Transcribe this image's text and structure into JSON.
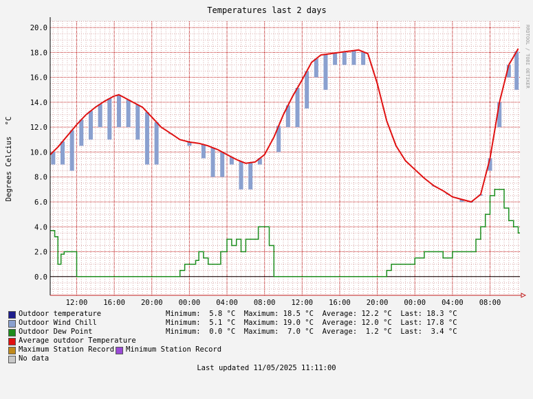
{
  "chart_data": {
    "type": "line",
    "title": "Temperatures last 2 days",
    "ylabel": "Degrees Celcius",
    "yunit": "°C",
    "watermark": "RRDTOOL / TOBI OETIKER",
    "ylim": [
      -1.5,
      20.5
    ],
    "yticks": [
      "0.0",
      "2.0",
      "4.0",
      "6.0",
      "8.0",
      "10.0",
      "12.0",
      "14.0",
      "16.0",
      "18.0",
      "20.0"
    ],
    "xlim": [
      "2025-05-09 09:11",
      "2025-05-11 11:11"
    ],
    "xticks": [
      {
        "t": "2025-05-09 12:00",
        "label": "12:00"
      },
      {
        "t": "2025-05-09 16:00",
        "label": "16:00"
      },
      {
        "t": "2025-05-09 20:00",
        "label": "20:00"
      },
      {
        "t": "2025-05-10 00:00",
        "label": "00:00"
      },
      {
        "t": "2025-05-10 04:00",
        "label": "04:00"
      },
      {
        "t": "2025-05-10 08:00",
        "label": "08:00"
      },
      {
        "t": "2025-05-10 12:00",
        "label": "12:00"
      },
      {
        "t": "2025-05-10 16:00",
        "label": "16:00"
      },
      {
        "t": "2025-05-10 20:00",
        "label": "20:00"
      },
      {
        "t": "2025-05-11 00:00",
        "label": "00:00"
      },
      {
        "t": "2025-05-11 04:00",
        "label": "04:00"
      },
      {
        "t": "2025-05-11 08:00",
        "label": "08:00"
      }
    ],
    "grid": true,
    "colors": {
      "temperature": "#1e1e8c",
      "wind_chill": "#8aa0cf",
      "dew_point": "#1c8c1c",
      "average": "#e01010",
      "max_record": "#c08a1c",
      "min_record": "#9a4ad6",
      "no_data": "#c8c8c8",
      "grid_major": "#c01818",
      "grid_minor": "#d7a8a8",
      "plot_bg": "#ffffff",
      "page_bg": "#f3f3f3"
    },
    "series": [
      {
        "name": "Average outdoor Temperature",
        "color": "#e01010",
        "x": [
          "2025-05-09 09:11",
          "2025-05-09 10:00",
          "2025-05-09 11:00",
          "2025-05-09 12:00",
          "2025-05-09 13:00",
          "2025-05-09 14:00",
          "2025-05-09 15:00",
          "2025-05-09 16:00",
          "2025-05-09 16:30",
          "2025-05-09 17:00",
          "2025-05-09 18:00",
          "2025-05-09 19:00",
          "2025-05-09 20:00",
          "2025-05-09 21:00",
          "2025-05-09 22:00",
          "2025-05-09 23:00",
          "2025-05-10 00:00",
          "2025-05-10 01:00",
          "2025-05-10 02:00",
          "2025-05-10 03:00",
          "2025-05-10 04:00",
          "2025-05-10 05:00",
          "2025-05-10 06:00",
          "2025-05-10 07:00",
          "2025-05-10 08:00",
          "2025-05-10 09:00",
          "2025-05-10 10:00",
          "2025-05-10 11:00",
          "2025-05-10 12:00",
          "2025-05-10 13:00",
          "2025-05-10 14:00",
          "2025-05-10 15:00",
          "2025-05-10 16:00",
          "2025-05-10 17:00",
          "2025-05-10 18:00",
          "2025-05-10 19:00",
          "2025-05-10 20:00",
          "2025-05-10 21:00",
          "2025-05-10 22:00",
          "2025-05-10 23:00",
          "2025-05-11 00:00",
          "2025-05-11 01:00",
          "2025-05-11 02:00",
          "2025-05-11 03:00",
          "2025-05-11 04:00",
          "2025-05-11 05:00",
          "2025-05-11 06:00",
          "2025-05-11 07:00",
          "2025-05-11 08:00",
          "2025-05-11 09:00",
          "2025-05-11 10:00",
          "2025-05-11 11:00"
        ],
        "y": [
          9.8,
          10.4,
          11.3,
          12.2,
          13.0,
          13.6,
          14.1,
          14.5,
          14.6,
          14.4,
          14.0,
          13.6,
          12.8,
          12.0,
          11.5,
          11.0,
          10.8,
          10.7,
          10.5,
          10.2,
          9.8,
          9.4,
          9.1,
          9.2,
          9.8,
          11.2,
          13.0,
          14.5,
          15.8,
          17.2,
          17.8,
          17.9,
          18.0,
          18.1,
          18.2,
          17.9,
          15.5,
          12.5,
          10.5,
          9.3,
          8.6,
          7.9,
          7.3,
          6.9,
          6.4,
          6.2,
          6.0,
          6.6,
          9.5,
          14.0,
          17.0,
          18.3
        ]
      },
      {
        "name": "Outdoor Wind Chill",
        "color": "#8aa0cf",
        "x": [
          "2025-05-09 09:30",
          "2025-05-09 10:30",
          "2025-05-09 11:30",
          "2025-05-09 12:30",
          "2025-05-09 13:30",
          "2025-05-09 14:30",
          "2025-05-09 15:30",
          "2025-05-09 16:30",
          "2025-05-09 17:30",
          "2025-05-09 18:30",
          "2025-05-09 19:30",
          "2025-05-09 20:30",
          "2025-05-09 22:00",
          "2025-05-10 00:00",
          "2025-05-10 01:30",
          "2025-05-10 02:30",
          "2025-05-10 03:30",
          "2025-05-10 04:30",
          "2025-05-10 05:30",
          "2025-05-10 06:30",
          "2025-05-10 07:30",
          "2025-05-10 09:30",
          "2025-05-10 10:30",
          "2025-05-10 11:30",
          "2025-05-10 12:30",
          "2025-05-10 13:30",
          "2025-05-10 14:30",
          "2025-05-10 15:30",
          "2025-05-10 16:30",
          "2025-05-10 17:30",
          "2025-05-10 18:30",
          "2025-05-11 02:00",
          "2025-05-11 03:30",
          "2025-05-11 05:00",
          "2025-05-11 06:00",
          "2025-05-11 07:00",
          "2025-05-11 08:00",
          "2025-05-11 09:00",
          "2025-05-11 10:00",
          "2025-05-11 10:50"
        ],
        "y": [
          9.0,
          9.0,
          8.5,
          10.5,
          11.0,
          12.0,
          11.0,
          12.0,
          12.0,
          11.0,
          9.0,
          9.0,
          11.5,
          10.5,
          9.5,
          8.0,
          8.0,
          9.0,
          7.0,
          7.0,
          9.0,
          10.0,
          12.0,
          12.0,
          13.5,
          16.0,
          15.0,
          17.0,
          17.0,
          17.0,
          17.0,
          7.3,
          7.0,
          6.0,
          6.0,
          6.5,
          8.5,
          12.0,
          16.0,
          15.0
        ]
      },
      {
        "name": "Outdoor Dew Point",
        "color": "#1c8c1c",
        "x": [
          "2025-05-09 09:11",
          "2025-05-09 09:40",
          "2025-05-09 10:00",
          "2025-05-09 10:20",
          "2025-05-09 10:40",
          "2025-05-09 12:00",
          "2025-05-09 20:00",
          "2025-05-09 22:00",
          "2025-05-09 23:00",
          "2025-05-09 23:30",
          "2025-05-10 00:00",
          "2025-05-10 00:40",
          "2025-05-10 01:00",
          "2025-05-10 01:30",
          "2025-05-10 02:00",
          "2025-05-10 03:00",
          "2025-05-10 03:20",
          "2025-05-10 04:00",
          "2025-05-10 04:30",
          "2025-05-10 05:00",
          "2025-05-10 05:30",
          "2025-05-10 06:00",
          "2025-05-10 07:00",
          "2025-05-10 07:20",
          "2025-05-10 08:00",
          "2025-05-10 08:30",
          "2025-05-10 09:00",
          "2025-05-10 10:00",
          "2025-05-10 19:00",
          "2025-05-10 20:00",
          "2025-05-10 21:00",
          "2025-05-10 21:30",
          "2025-05-10 22:00",
          "2025-05-10 23:00",
          "2025-05-11 00:00",
          "2025-05-11 01:00",
          "2025-05-11 02:00",
          "2025-05-11 03:00",
          "2025-05-11 04:00",
          "2025-05-11 05:00",
          "2025-05-11 06:00",
          "2025-05-11 06:30",
          "2025-05-11 07:00",
          "2025-05-11 07:30",
          "2025-05-11 08:00",
          "2025-05-11 08:30",
          "2025-05-11 09:00",
          "2025-05-11 09:30",
          "2025-05-11 10:00",
          "2025-05-11 10:30",
          "2025-05-11 11:00"
        ],
        "y": [
          3.7,
          3.2,
          1.0,
          1.8,
          2.0,
          0.0,
          0.0,
          0.0,
          0.5,
          1.0,
          1.0,
          1.3,
          2.0,
          1.5,
          1.0,
          1.0,
          2.0,
          3.0,
          2.5,
          3.0,
          2.0,
          3.0,
          3.0,
          4.0,
          4.0,
          2.5,
          0.0,
          0.0,
          0.0,
          0.0,
          0.5,
          1.0,
          1.0,
          1.0,
          1.5,
          2.0,
          2.0,
          1.5,
          2.0,
          2.0,
          2.0,
          3.0,
          4.0,
          5.0,
          6.5,
          7.0,
          7.0,
          5.5,
          4.5,
          4.0,
          3.5
        ]
      }
    ],
    "stats": [
      {
        "name": "Outdoor temperature",
        "minimum": "5.8",
        "maximum": "18.5",
        "average": "12.2",
        "last": "18.3",
        "unit": "°C"
      },
      {
        "name": "Outdoor Wind Chill",
        "minimum": "5.1",
        "maximum": "19.0",
        "average": "12.0",
        "last": "17.8",
        "unit": "°C"
      },
      {
        "name": "Outdoor Dew Point",
        "minimum": "0.0",
        "maximum": "7.0",
        "average": "1.2",
        "last": "3.4",
        "unit": "°C"
      }
    ]
  },
  "legend": {
    "temperature": "Outdoor temperature",
    "wind_chill": "Outdoor Wind Chill",
    "dew_point": "Outdoor Dew Point",
    "average": "Average outdoor Temperature",
    "max_record": "Maximum Station Record",
    "min_record": "Minimum Station Record",
    "no_data": "No data"
  },
  "stats_text": {
    "row1": "Minimum:  5.8 °C  Maximum: 18.5 °C  Average: 12.2 °C  Last: 18.3 °C",
    "row2": "Minimum:  5.1 °C  Maximum: 19.0 °C  Average: 12.0 °C  Last: 17.8 °C",
    "row3": "Minimum:  0.0 °C  Maximum:  7.0 °C  Average:  1.2 °C  Last:  3.4 °C"
  },
  "footer": "Last updated 11/05/2025 11:11:00"
}
